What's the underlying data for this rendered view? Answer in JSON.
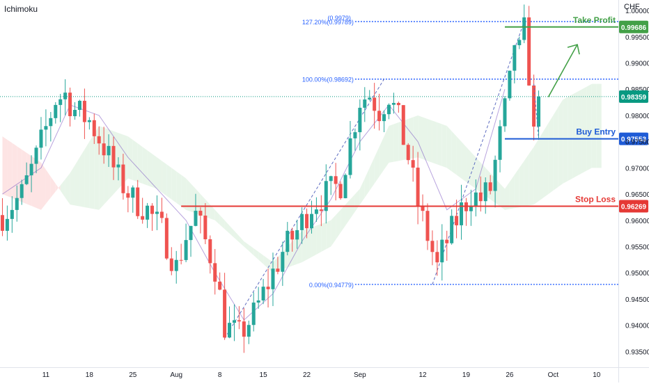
{
  "header": {
    "indicator": "Ichimoku",
    "currency": "CHF"
  },
  "chart_data": {
    "type": "candlestick",
    "y_axis": {
      "range": [
        0.932,
        1.002
      ],
      "ticks": [
        "1.00000",
        "0.99500",
        "0.99000",
        "0.98500",
        "0.98000",
        "0.97500",
        "0.97000",
        "0.96500",
        "0.96000",
        "0.95500",
        "0.95000",
        "0.94500",
        "0.94000",
        "0.93500"
      ],
      "tick_values": [
        1.0,
        0.995,
        0.99,
        0.985,
        0.98,
        0.975,
        0.97,
        0.965,
        0.96,
        0.955,
        0.95,
        0.945,
        0.94,
        0.935
      ]
    },
    "x_axis": {
      "ticks": [
        "11",
        "18",
        "25",
        "Aug",
        "8",
        "15",
        "22",
        "Sep",
        "12",
        "19",
        "26",
        "Oct",
        "10"
      ],
      "tick_bar_index": [
        9,
        18,
        27,
        36,
        45,
        54,
        63,
        74,
        87,
        96,
        105,
        114,
        123
      ],
      "total_slots": 128
    },
    "colors": {
      "up": "#26a69a",
      "down": "#ef5350",
      "cloud_bull": "#e8f5e9",
      "cloud_bear": "#fde4e4",
      "fib": "#2962ff",
      "take_profit": "#43a047",
      "buy_entry": "#1e5bd6",
      "stop_loss": "#e53935",
      "current": "#089981"
    },
    "levels": [
      {
        "name": "Take Profit",
        "value": 0.99686,
        "label": "0.99686",
        "color": "#43a047"
      },
      {
        "name": "Buy Entry",
        "value": 0.97553,
        "label": "0.97553",
        "color": "#1e5bd6"
      },
      {
        "name": "Stop Loss",
        "value": 0.96269,
        "label": "0.96269",
        "color": "#e53935"
      }
    ],
    "current_price": {
      "value": 0.98359,
      "label": "0.98359"
    },
    "fibonacci": [
      {
        "label": "127.20%(0.99789)",
        "value": 0.99789
      },
      {
        "label": "100.00%(0.98692)",
        "value": 0.98692
      },
      {
        "label": "0.00%(0.94779)",
        "value": 0.94779
      }
    ],
    "fib_extra_label": "(0.9979)",
    "closes_keypoints": [
      [
        0,
        0.961
      ],
      [
        4,
        0.965
      ],
      [
        7,
        0.972
      ],
      [
        11,
        0.983
      ],
      [
        13,
        0.984
      ],
      [
        15,
        0.981
      ],
      [
        18,
        0.979
      ],
      [
        21,
        0.974
      ],
      [
        24,
        0.968
      ],
      [
        27,
        0.964
      ],
      [
        30,
        0.962
      ],
      [
        33,
        0.958
      ],
      [
        36,
        0.951
      ],
      [
        38,
        0.957
      ],
      [
        40,
        0.961
      ],
      [
        42,
        0.956
      ],
      [
        44,
        0.951
      ],
      [
        46,
        0.94
      ],
      [
        49,
        0.938
      ],
      [
        52,
        0.942
      ],
      [
        55,
        0.948
      ],
      [
        58,
        0.954
      ],
      [
        61,
        0.958
      ],
      [
        64,
        0.963
      ],
      [
        67,
        0.965
      ],
      [
        70,
        0.967
      ],
      [
        72,
        0.975
      ],
      [
        74,
        0.983
      ],
      [
        76,
        0.984
      ],
      [
        78,
        0.981
      ],
      [
        80,
        0.984
      ],
      [
        82,
        0.979
      ],
      [
        84,
        0.972
      ],
      [
        86,
        0.963
      ],
      [
        88,
        0.957
      ],
      [
        90,
        0.951
      ],
      [
        91,
        0.954
      ],
      [
        93,
        0.958
      ],
      [
        95,
        0.962
      ],
      [
        97,
        0.965
      ],
      [
        99,
        0.964
      ],
      [
        101,
        0.966
      ],
      [
        103,
        0.976
      ],
      [
        105,
        0.986
      ],
      [
        106,
        0.994
      ],
      [
        107,
        0.992
      ],
      [
        108,
        0.996
      ],
      [
        109,
        0.988
      ],
      [
        110,
        0.976
      ],
      [
        111,
        0.982
      ]
    ],
    "tenkan_keypoints": [
      [
        0,
        0.962
      ],
      [
        5,
        0.966
      ],
      [
        10,
        0.98
      ],
      [
        14,
        0.982
      ],
      [
        18,
        0.978
      ],
      [
        22,
        0.972
      ],
      [
        27,
        0.966
      ],
      [
        32,
        0.958
      ],
      [
        37,
        0.954
      ],
      [
        42,
        0.957
      ],
      [
        46,
        0.944
      ],
      [
        50,
        0.94
      ],
      [
        55,
        0.946
      ],
      [
        60,
        0.956
      ],
      [
        65,
        0.962
      ],
      [
        70,
        0.967
      ],
      [
        74,
        0.98
      ],
      [
        79,
        0.982
      ],
      [
        84,
        0.973
      ],
      [
        88,
        0.958
      ],
      [
        92,
        0.954
      ],
      [
        96,
        0.962
      ],
      [
        100,
        0.965
      ],
      [
        104,
        0.978
      ],
      [
        108,
        0.99
      ],
      [
        111,
        0.983
      ]
    ],
    "cloud_a_keypoints": [
      [
        0,
        0.965
      ],
      [
        8,
        0.962
      ],
      [
        14,
        0.969
      ],
      [
        20,
        0.978
      ],
      [
        26,
        0.976
      ],
      [
        32,
        0.972
      ],
      [
        38,
        0.968
      ],
      [
        44,
        0.962
      ],
      [
        50,
        0.956
      ],
      [
        56,
        0.952
      ],
      [
        62,
        0.958
      ],
      [
        68,
        0.96
      ],
      [
        74,
        0.966
      ],
      [
        80,
        0.978
      ],
      [
        86,
        0.98
      ],
      [
        92,
        0.978
      ],
      [
        98,
        0.972
      ],
      [
        104,
        0.966
      ],
      [
        110,
        0.974
      ],
      [
        116,
        0.983
      ],
      [
        122,
        0.986
      ]
    ],
    "cloud_b_keypoints": [
      [
        0,
        0.976
      ],
      [
        8,
        0.971
      ],
      [
        14,
        0.963
      ],
      [
        20,
        0.962
      ],
      [
        26,
        0.968
      ],
      [
        32,
        0.966
      ],
      [
        38,
        0.962
      ],
      [
        44,
        0.96
      ],
      [
        50,
        0.955
      ],
      [
        56,
        0.95
      ],
      [
        62,
        0.952
      ],
      [
        68,
        0.955
      ],
      [
        74,
        0.963
      ],
      [
        80,
        0.971
      ],
      [
        86,
        0.972
      ],
      [
        92,
        0.97
      ],
      [
        98,
        0.966
      ],
      [
        104,
        0.962
      ],
      [
        110,
        0.963
      ],
      [
        116,
        0.967
      ],
      [
        122,
        0.97
      ]
    ],
    "chikou_keypoints": [
      [
        0,
        0.965
      ],
      [
        8,
        0.97
      ],
      [
        14,
        0.982
      ],
      [
        20,
        0.98
      ],
      [
        26,
        0.972
      ],
      [
        32,
        0.966
      ],
      [
        38,
        0.96
      ],
      [
        44,
        0.95
      ],
      [
        50,
        0.941
      ],
      [
        56,
        0.946
      ],
      [
        62,
        0.956
      ],
      [
        68,
        0.964
      ],
      [
        74,
        0.975
      ],
      [
        80,
        0.982
      ],
      [
        86,
        0.975
      ],
      [
        92,
        0.962
      ],
      [
        98,
        0.966
      ],
      [
        104,
        0.985
      ]
    ]
  }
}
